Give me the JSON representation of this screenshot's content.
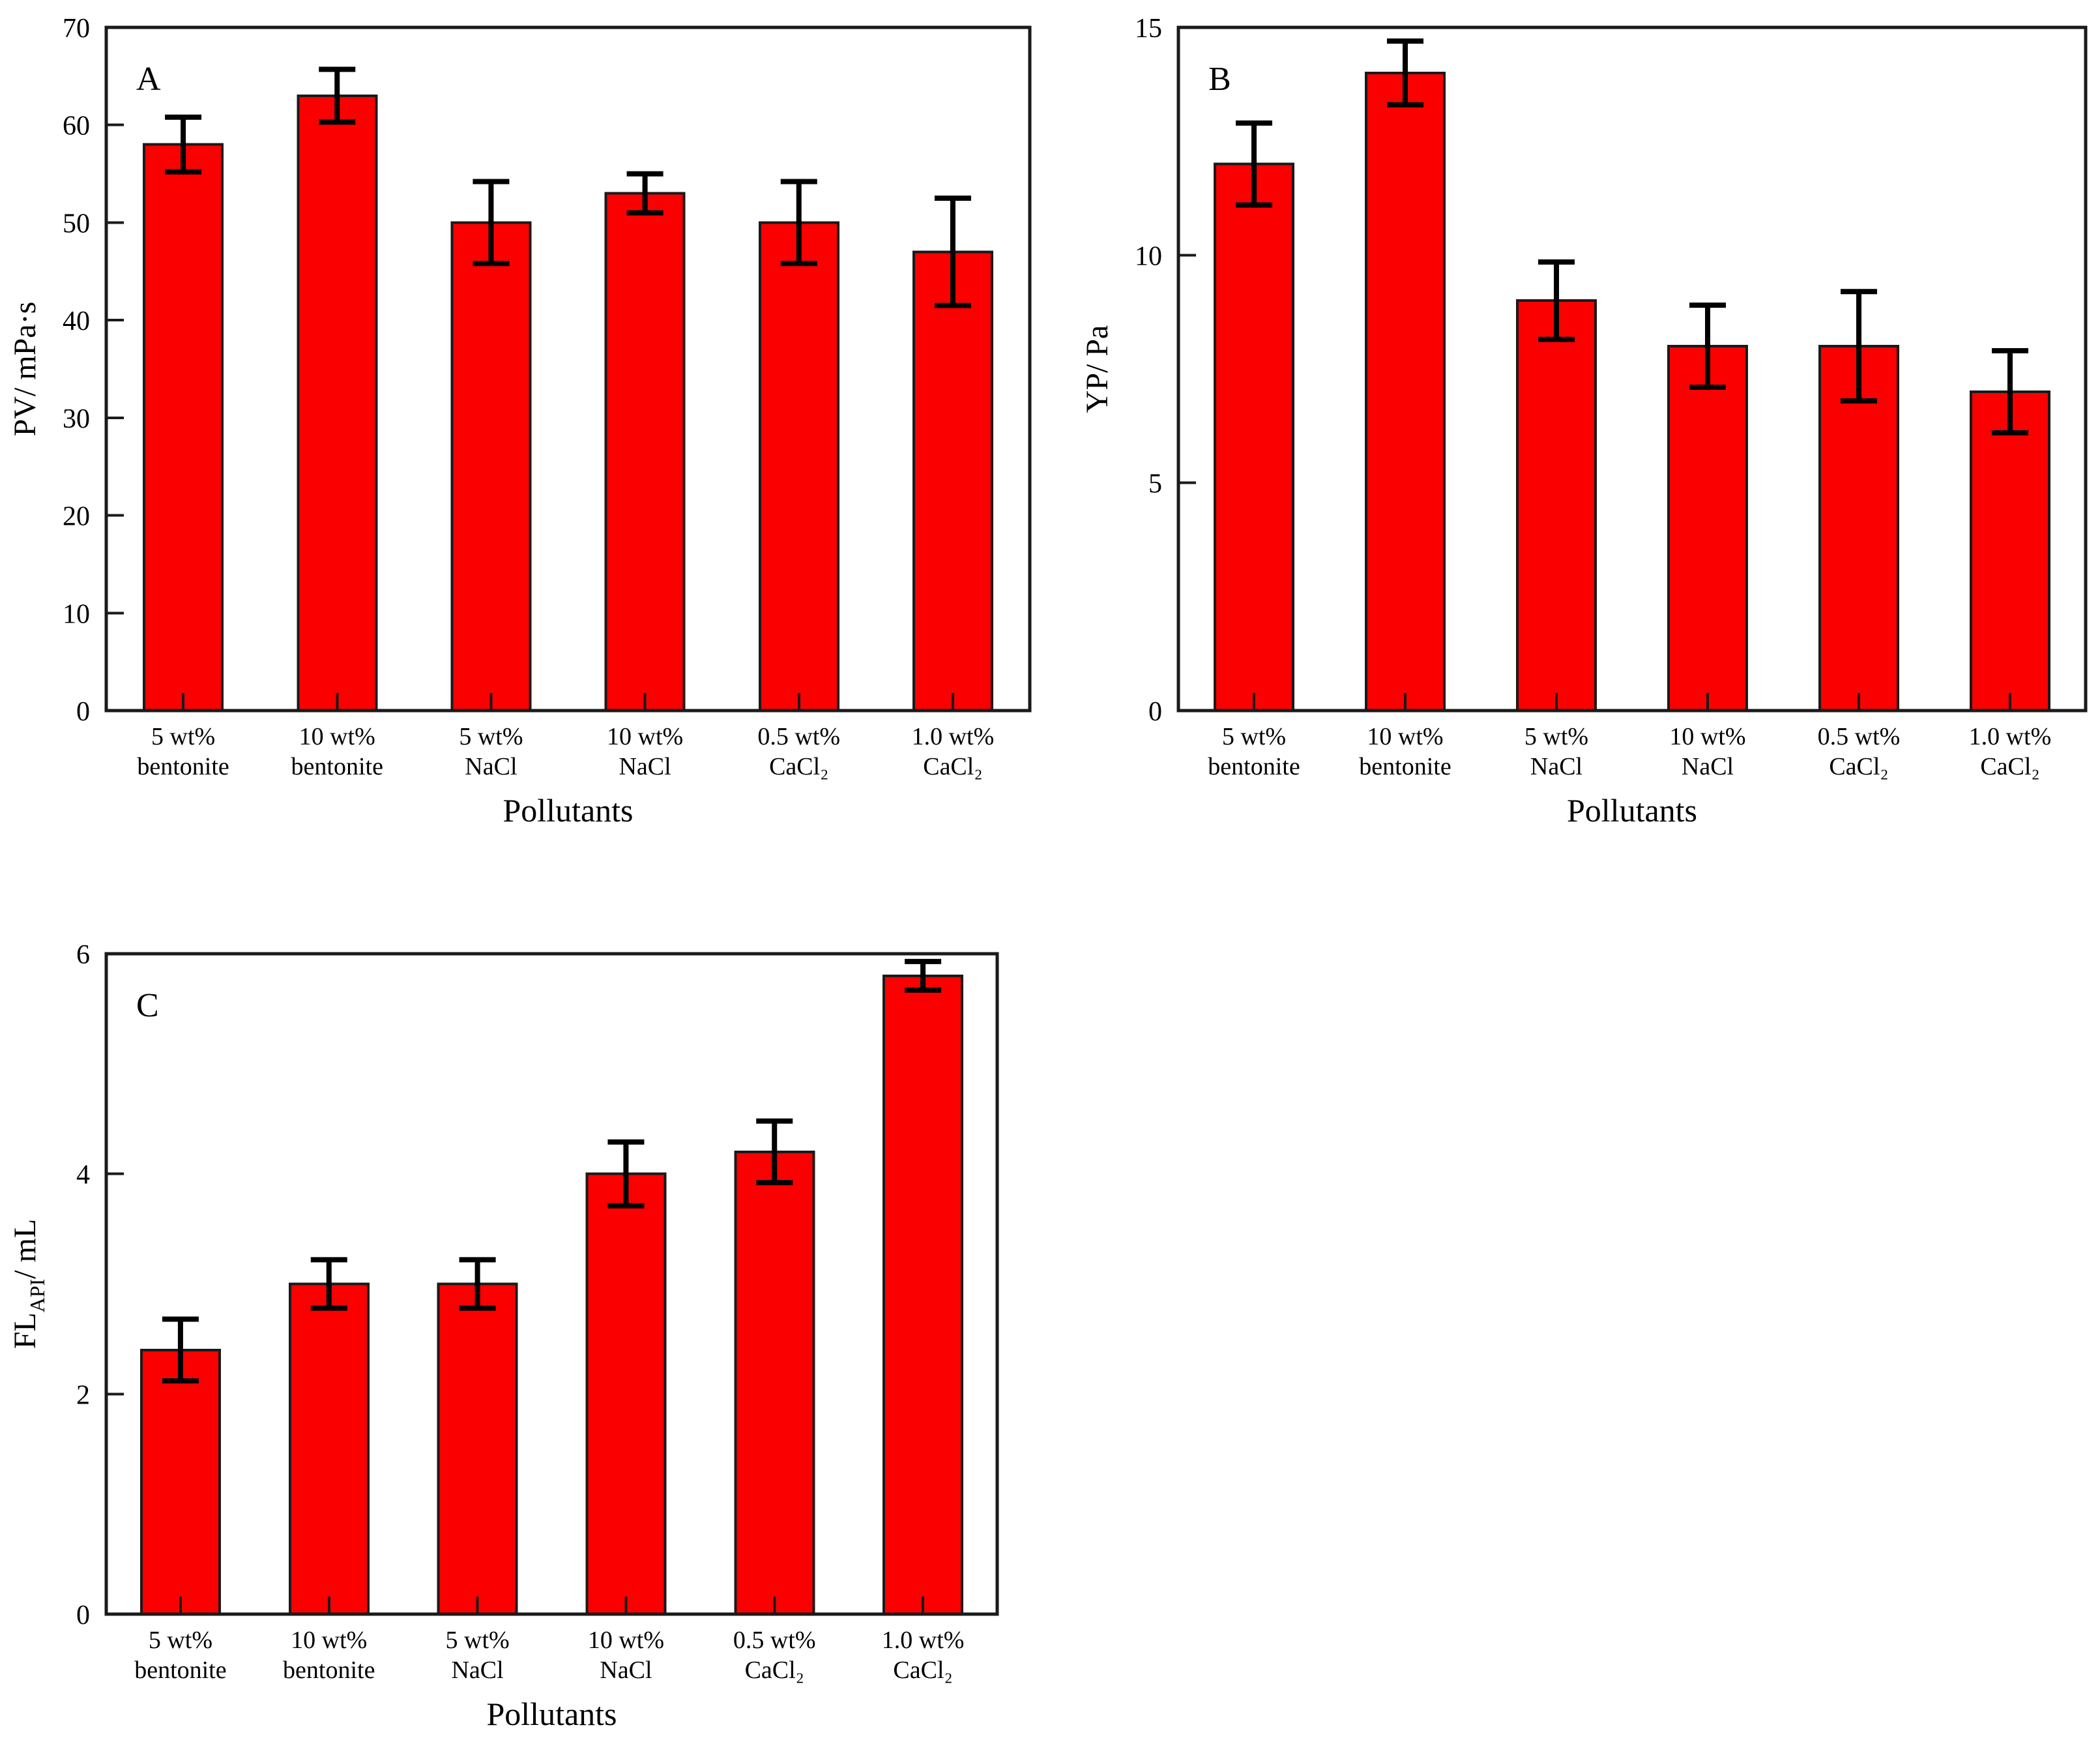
{
  "figure": {
    "background": "#ffffff",
    "x_axis_title": "Pollutants"
  },
  "colors": {
    "bar_fill": "#fb0000",
    "bar_edge": "#1a1a1a",
    "error_bar": "#000000",
    "axis": "#1a1a1a",
    "text": "#000000"
  },
  "chart_data": [
    {
      "type": "bar",
      "panel_label": "A",
      "ylabel_segments": [
        {
          "t": "PV/ mPa·s"
        }
      ],
      "xlabel": "Pollutants",
      "ylim": [
        0,
        70
      ],
      "yticks": [
        0,
        10,
        20,
        30,
        40,
        50,
        60,
        70
      ],
      "grid": false,
      "categories": [
        [
          "5 wt%",
          "bentonite"
        ],
        [
          "10 wt%",
          "bentonite"
        ],
        [
          "5 wt%",
          "NaCl"
        ],
        [
          "10 wt%",
          "NaCl"
        ],
        [
          "0.5 wt%",
          "CaCl₂"
        ],
        [
          "1.0 wt%",
          "CaCl₂"
        ]
      ],
      "values": [
        58,
        63,
        50,
        53,
        50,
        47
      ],
      "errors": [
        2.8,
        2.7,
        4.2,
        2.0,
        4.2,
        5.5
      ]
    },
    {
      "type": "bar",
      "panel_label": "B",
      "ylabel_segments": [
        {
          "t": "YP/ Pa"
        }
      ],
      "xlabel": "Pollutants",
      "ylim": [
        0,
        15
      ],
      "yticks": [
        0,
        5,
        10,
        15
      ],
      "grid": false,
      "categories": [
        [
          "5 wt%",
          "bentonite"
        ],
        [
          "10 wt%",
          "bentonite"
        ],
        [
          "5 wt%",
          "NaCl"
        ],
        [
          "10 wt%",
          "NaCl"
        ],
        [
          "0.5 wt%",
          "CaCl₂"
        ],
        [
          "1.0 wt%",
          "CaCl₂"
        ]
      ],
      "values": [
        12,
        14,
        9,
        8,
        8,
        7
      ],
      "errors": [
        0.9,
        0.7,
        0.85,
        0.9,
        1.2,
        0.9
      ]
    },
    {
      "type": "bar",
      "panel_label": "C",
      "ylabel_segments": [
        {
          "t": "FL"
        },
        {
          "t": "API",
          "sub": true
        },
        {
          "t": "/  mL"
        }
      ],
      "xlabel": "Pollutants",
      "ylim": [
        0,
        6
      ],
      "yticks": [
        0,
        2,
        4,
        6
      ],
      "grid": false,
      "categories": [
        [
          "5 wt%",
          "bentonite"
        ],
        [
          "10 wt%",
          "bentonite"
        ],
        [
          "5 wt%",
          "NaCl"
        ],
        [
          "10 wt%",
          "NaCl"
        ],
        [
          "0.5 wt%",
          "CaCl₂"
        ],
        [
          "1.0 wt%",
          "CaCl₂"
        ]
      ],
      "values": [
        2.4,
        3.0,
        3.0,
        4.0,
        4.2,
        5.8
      ],
      "errors": [
        0.28,
        0.22,
        0.22,
        0.29,
        0.28,
        0.13
      ]
    }
  ]
}
